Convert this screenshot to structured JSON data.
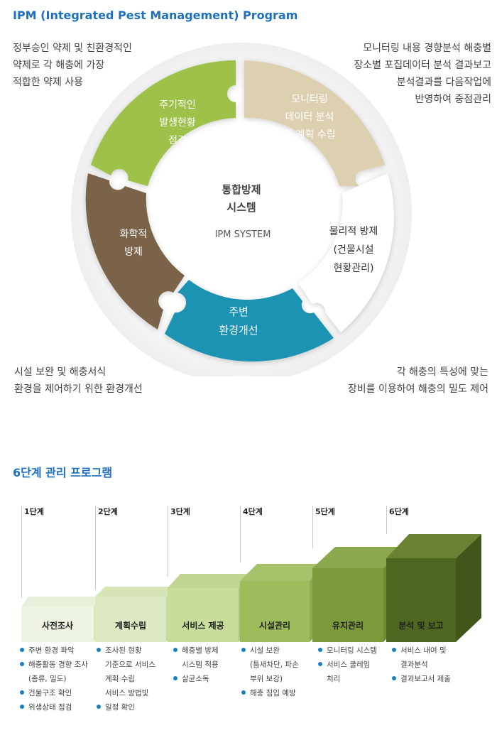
{
  "ipm": {
    "title": "IPM (Integrated Pest Management) Program",
    "center_line1": "통합방제",
    "center_line2": "시스템",
    "center_en": "IPM SYSTEM",
    "pieces": {
      "green": [
        "주기적인",
        "발생현황",
        "점검"
      ],
      "beige": [
        "모니터링",
        "데이터 분석",
        "및 계획 수립"
      ],
      "white": [
        "물리적 방제",
        "(건물시설",
        "현황관리)"
      ],
      "teal": [
        "주변",
        "환경개선"
      ],
      "brown": [
        "화학적",
        "방제"
      ]
    },
    "notes": {
      "top_left": "정부승인 약제 및 친환경적인\n약제로 각 해충에 가장\n적합한 약제 사용",
      "top_right": "모니터링 내용 경향분석 해충별\n장소별 포집데이터 분석 결과보고\n분석결과를 다음작업에\n반영하여  중점관리",
      "bottom_left": "시설 보완 및 해충서식\n환경을 제어하기 위한 환경개선",
      "bottom_right": "각 해충의 특성에 맞는\n장비를 이용하여 해충의 밀도 제어"
    },
    "colors": {
      "green": "#9dc14a",
      "beige": "#ddd0b0",
      "white": "#ffffff",
      "teal": "#1a93b3",
      "brown": "#7a644a"
    }
  },
  "program": {
    "title": "6단계 관리 프로그램",
    "stages": [
      {
        "step": "1단계",
        "name": "사전조사",
        "items": [
          "주변 환경 파악",
          "해충활동 경향 조사\n(종류, 밀도)",
          "건물구조 확인",
          "위생상태 점검"
        ]
      },
      {
        "step": "2단계",
        "name": "계획수립",
        "items": [
          "조사된 현황\n기준으로 서비스\n계획 수립\n서비스 방법빛",
          "일정 확인"
        ]
      },
      {
        "step": "3단계",
        "name": "서비스 제공",
        "items": [
          "해충별 방제\n시스템 적용",
          "살균소독"
        ]
      },
      {
        "step": "4단계",
        "name": "시설관리",
        "items": [
          "시설 보완\n(틈새차단, 파손\n부위 보강)",
          "해충 침입 예방"
        ]
      },
      {
        "step": "5단계",
        "name": "유지관리",
        "items": [
          "모니터링 시스템",
          "서비스 쿨레임\n처리"
        ]
      },
      {
        "step": "6단계",
        "name": "분석 및 보고",
        "items": [
          "서비스 내여 및\n결과분석",
          "결과보고서 제출"
        ]
      }
    ]
  }
}
